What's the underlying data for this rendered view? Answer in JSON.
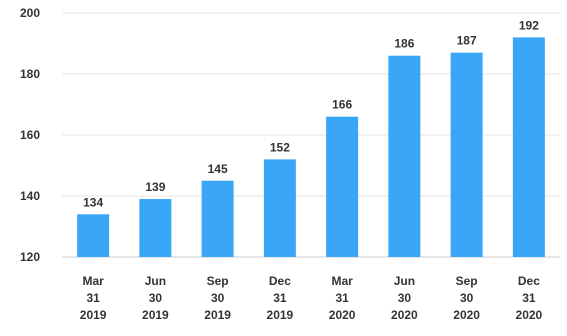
{
  "chart_data": {
    "type": "bar",
    "title": "",
    "xlabel": "",
    "ylabel": "",
    "categories": [
      [
        "Mar",
        "31",
        "2019"
      ],
      [
        "Jun",
        "30",
        "2019"
      ],
      [
        "Sep",
        "30",
        "2019"
      ],
      [
        "Dec",
        "31",
        "2019"
      ],
      [
        "Mar",
        "31",
        "2020"
      ],
      [
        "Jun",
        "30",
        "2020"
      ],
      [
        "Sep",
        "30",
        "2020"
      ],
      [
        "Dec",
        "31",
        "2020"
      ]
    ],
    "values": [
      134,
      139,
      145,
      152,
      166,
      186,
      187,
      192
    ],
    "data_labels": [
      "134",
      "139",
      "145",
      "152",
      "166",
      "186",
      "187",
      "192"
    ],
    "ylim": [
      120,
      200
    ],
    "yticks": [
      120,
      140,
      160,
      180,
      200
    ],
    "ytick_labels": [
      "120",
      "140",
      "160",
      "180",
      "200"
    ],
    "grid": true,
    "legend": "none",
    "colors": {
      "bar": "#3aa6f8",
      "grid": "#e6e6e6",
      "text": "#333333"
    }
  }
}
